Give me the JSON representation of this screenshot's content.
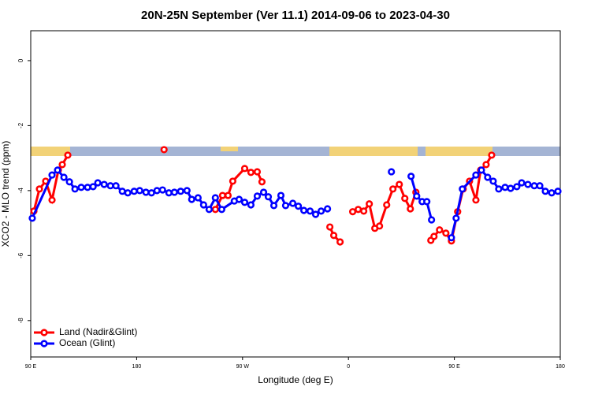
{
  "chart_data": {
    "type": "line",
    "title": "20N-25N September (Ver 11.1)   2014-09-06 to 2023-04-30",
    "x_label": "Longitude (deg E)",
    "y_label": "XCO2 - MLO trend (ppm)",
    "xlim": [
      90,
      540
    ],
    "xticks": [
      {
        "value": 90,
        "label": "90 E"
      },
      {
        "value": 180,
        "label": "180"
      },
      {
        "value": 270,
        "label": "90 W"
      },
      {
        "value": 360,
        "label": "0"
      },
      {
        "value": 450,
        "label": "90 E"
      },
      {
        "value": 540,
        "label": "180"
      }
    ],
    "ylim": [
      -9.12,
      0.92
    ],
    "yticks": [
      0,
      -2,
      -4,
      -6,
      -8
    ],
    "legend": "bottom-left",
    "series": [
      {
        "name": "Land (Nadir&Glint)",
        "color": "#ff0000",
        "x": [
          92.7,
          97.4,
          102.7,
          108.1,
          113.5,
          116.8,
          121.5,
          null,
          203.3,
          null,
          246.9,
          253,
          257.7,
          261.7,
          271.8,
          277.1,
          282.5,
          286.5,
          null,
          344.2,
          347.5,
          352.9,
          null,
          363.6,
          368.3,
          373,
          377.7,
          382.4,
          386.4,
          392.5,
          397.8,
          403.2,
          407.9,
          412.6,
          417.3,
          null,
          430,
          432.7,
          437.4,
          442.8,
          447.5,
          452.8,
          457.5,
          462.9,
          468.3,
          472.3,
          477,
          481.7
        ],
        "values": [
          -4.63,
          -3.95,
          -3.71,
          -4.29,
          -3.37,
          -3.2,
          -2.91,
          null,
          -2.74,
          null,
          -4.58,
          -4.15,
          -4.15,
          -3.71,
          -3.32,
          -3.44,
          -3.42,
          -3.73,
          null,
          -5.12,
          -5.38,
          -5.58,
          null,
          -4.65,
          -4.58,
          -4.63,
          -4.41,
          -5.16,
          -5.09,
          -4.44,
          -3.95,
          -3.81,
          -4.24,
          -4.56,
          -4.05,
          null,
          -5.53,
          -5.41,
          -5.21,
          -5.31,
          -5.55,
          -4.65,
          -3.95,
          -3.71,
          -4.29,
          -3.37,
          -3.2,
          -2.91
        ]
      },
      {
        "name": "Ocean (Glint)",
        "color": "#0000ff",
        "x": [
          91.3,
          108.1,
          112.8,
          118.2,
          122.9,
          127.6,
          132.9,
          138.3,
          143,
          147,
          152.4,
          157.7,
          162.4,
          167.8,
          172.5,
          177.9,
          182.6,
          187.9,
          192.6,
          197.3,
          202,
          207.4,
          212.1,
          217.4,
          222.8,
          226.8,
          232.2,
          236.9,
          241.6,
          246.9,
          252.3,
          263,
          267.1,
          271.8,
          277.1,
          282.5,
          287.9,
          291.9,
          296.6,
          302.6,
          306.6,
          312.7,
          317.4,
          322.1,
          327.4,
          332.1,
          336.8,
          342.2,
          null,
          396.5,
          null,
          413.2,
          418,
          422.6,
          426.6,
          430.6,
          null,
          447.5,
          451.5,
          456.8,
          468.3,
          473,
          478.3,
          483,
          487.7,
          493.1,
          497.8,
          503.1,
          507.2,
          512.5,
          517.9,
          522.6,
          527.3,
          532.7,
          538
        ],
        "values": [
          -4.85,
          -3.52,
          -3.37,
          -3.59,
          -3.73,
          -3.95,
          -3.9,
          -3.9,
          -3.88,
          -3.76,
          -3.81,
          -3.85,
          -3.85,
          -4.02,
          -4.07,
          -4.02,
          -4.0,
          -4.05,
          -4.07,
          -4.0,
          -3.98,
          -4.07,
          -4.05,
          -4.02,
          -4.0,
          -4.27,
          -4.22,
          -4.44,
          -4.58,
          -4.22,
          -4.58,
          -4.32,
          -4.27,
          -4.36,
          -4.44,
          -4.17,
          -4.05,
          -4.19,
          -4.46,
          -4.15,
          -4.46,
          -4.39,
          -4.48,
          -4.61,
          -4.63,
          -4.73,
          -4.63,
          -4.56,
          null,
          -3.42,
          null,
          -3.56,
          -4.17,
          -4.34,
          -4.34,
          -4.9,
          null,
          -5.45,
          -4.85,
          -3.95,
          -3.52,
          -3.37,
          -3.59,
          -3.71,
          -3.95,
          -3.9,
          -3.93,
          -3.88,
          -3.76,
          -3.81,
          -3.85,
          -3.85,
          -4.02,
          -4.07,
          -4.02
        ]
      }
    ]
  }
}
